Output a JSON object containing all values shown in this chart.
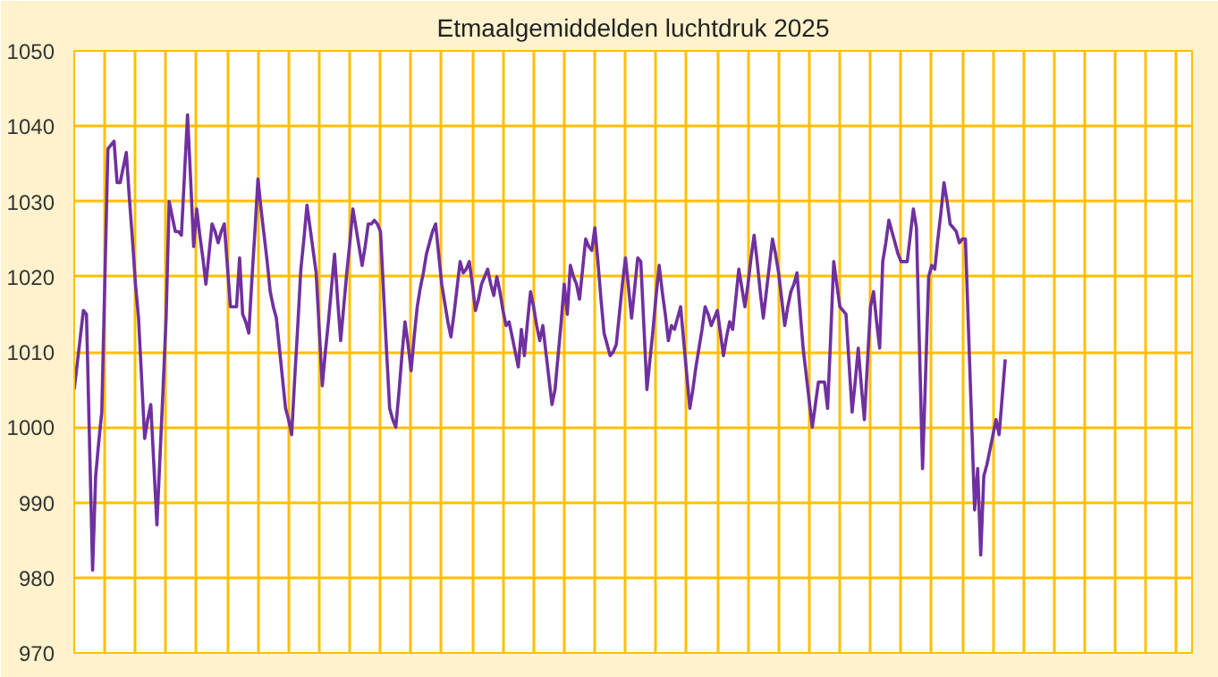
{
  "chart_data": {
    "type": "line",
    "title": "Etmaalgemiddelden luchtdruk 2025",
    "categories": [
      null,
      null,
      null,
      null,
      null,
      null,
      null,
      null,
      null,
      null,
      null,
      null,
      null,
      null,
      null,
      null,
      null,
      null,
      null,
      null,
      null,
      null,
      null,
      null,
      null,
      null,
      null,
      null,
      null,
      null,
      null,
      null,
      null,
      null,
      null,
      null,
      null,
      null,
      null,
      null,
      null,
      null,
      null,
      null,
      null,
      null,
      null,
      null,
      null,
      null,
      null,
      null,
      null,
      null,
      null,
      null,
      null,
      null,
      null,
      null,
      null,
      null,
      null,
      null,
      null,
      null,
      null,
      null,
      null,
      null,
      null,
      null,
      null,
      null,
      null,
      null,
      null,
      null,
      null,
      null,
      null,
      null,
      null,
      null,
      null,
      null,
      null,
      null,
      null,
      null,
      null,
      null,
      null,
      null,
      null,
      null,
      null,
      null,
      null,
      null,
      null,
      null,
      null,
      null,
      null,
      null,
      null,
      null,
      null,
      null,
      null,
      null,
      null,
      null,
      null,
      null,
      null,
      null,
      null,
      null,
      null,
      null,
      null,
      null,
      null,
      null,
      null,
      null,
      null,
      null,
      null,
      null,
      null,
      null,
      null,
      null,
      null,
      null,
      null,
      null,
      null,
      null,
      null,
      null,
      null,
      null,
      null,
      null,
      null,
      null,
      null,
      null,
      null,
      null,
      null,
      null,
      null,
      null,
      null,
      null,
      null,
      null,
      null,
      null,
      null,
      null,
      null,
      null,
      null,
      null,
      null,
      null,
      null,
      null,
      null,
      null,
      null,
      null,
      null,
      null,
      null,
      null,
      null,
      null,
      null,
      null,
      null,
      null,
      null,
      null,
      null,
      null,
      null,
      null,
      null,
      null,
      null,
      null,
      null,
      null,
      null,
      null,
      null,
      null,
      null,
      null,
      null,
      null,
      null,
      null,
      null,
      null,
      null,
      null,
      null,
      null,
      null,
      null,
      null,
      null,
      null,
      null,
      null,
      null,
      null,
      null,
      null,
      null,
      null,
      null,
      null,
      null,
      null,
      null,
      null,
      null,
      null,
      null,
      null,
      null,
      null,
      null,
      null,
      null,
      null,
      null,
      null,
      null,
      null,
      null,
      null,
      null,
      null,
      null,
      null,
      null,
      null,
      null,
      null,
      null,
      null,
      null,
      null,
      null,
      null,
      null,
      null,
      null,
      null,
      null,
      null,
      null,
      null,
      null,
      null,
      null,
      null,
      null,
      null,
      null,
      null,
      null,
      null,
      null,
      null,
      null,
      null,
      null,
      null,
      null,
      null,
      null,
      null,
      null,
      null,
      null,
      null,
      null,
      null,
      null,
      null,
      null,
      null,
      null,
      null,
      null,
      null,
      null,
      null,
      null,
      null,
      null,
      null,
      null,
      null,
      null,
      null,
      null,
      null,
      null,
      null,
      null,
      null,
      null,
      null,
      null,
      null,
      null,
      null,
      null,
      null,
      null,
      null,
      null,
      null,
      null,
      null,
      null,
      null,
      null,
      null,
      null,
      null,
      null,
      null,
      null,
      null,
      null,
      null,
      null,
      null,
      null,
      null,
      null,
      null,
      null,
      null,
      null,
      null,
      null,
      null,
      null,
      null,
      null,
      null
    ],
    "series": [
      {
        "color": "#7030a0",
        "values": [
          1005,
          1008.5,
          1012,
          1015.5,
          1015,
          998,
          981,
          993.5,
          998,
          1002,
          1019.5,
          1037,
          1037.5,
          1038,
          1032.5,
          1032.5,
          1034.5,
          1036.5,
          1030.5,
          1025,
          1019,
          1014.5,
          1006.5,
          998.5,
          1001,
          1003,
          995,
          987,
          996,
          1005,
          1014.5,
          1030,
          1028,
          1026,
          1026,
          1025.5,
          1033.5,
          1041.5,
          1033,
          1024,
          1029,
          1025.5,
          1022.5,
          1019,
          1023,
          1027,
          1026,
          1024.5,
          1026,
          1027,
          1021.5,
          1016,
          1016,
          1016,
          1022.5,
          1015,
          1014,
          1012.5,
          1019.5,
          1026,
          1033,
          1029,
          1025.5,
          1022,
          1018,
          1016,
          1014.5,
          1010.5,
          1006.5,
          1002.5,
          1001,
          999,
          1006.5,
          1013.5,
          1021,
          1025,
          1029.5,
          1026.5,
          1023.5,
          1020.5,
          1013,
          1005.5,
          1010,
          1014,
          1018.5,
          1023,
          1017,
          1011.5,
          1016,
          1020.5,
          1024.5,
          1029,
          1026.5,
          1024,
          1021.5,
          1024,
          1027,
          1027,
          1027.5,
          1027,
          1026,
          1018,
          1010,
          1002.5,
          1001,
          1000,
          1004.5,
          1009.5,
          1014,
          1011,
          1007.5,
          1012,
          1016,
          1018.5,
          1020.5,
          1023,
          1024.5,
          1026,
          1027,
          1023,
          1019,
          1016.5,
          1014,
          1012,
          1015,
          1018.5,
          1022,
          1020.5,
          1021,
          1022,
          1019,
          1015.5,
          1017,
          1019,
          1020,
          1021,
          1019,
          1017.5,
          1020,
          1018,
          1015.5,
          1013.5,
          1014,
          1012,
          1010,
          1008,
          1013,
          1009.5,
          1014,
          1018,
          1016,
          1013.5,
          1011.5,
          1013.5,
          1010,
          1006.5,
          1003,
          1005,
          1009.5,
          1014,
          1019,
          1015,
          1021.5,
          1020,
          1019,
          1017,
          1021,
          1025,
          1024,
          1023.5,
          1026.5,
          1022,
          1017,
          1012.5,
          1011,
          1009.5,
          1010,
          1011,
          1015,
          1019,
          1022.5,
          1018.5,
          1014.5,
          1018.5,
          1022.5,
          1022,
          1013.5,
          1005,
          1009,
          1013,
          1017.5,
          1021.5,
          1018,
          1015,
          1011.5,
          1013.5,
          1013,
          1014.5,
          1016,
          1011.5,
          1007,
          1002.5,
          1005,
          1008,
          1010.5,
          1013,
          1016,
          1015,
          1013.5,
          1014.5,
          1015.5,
          1012.5,
          1009.5,
          1012,
          1014,
          1013,
          1017,
          1021,
          1018.5,
          1016,
          1019,
          1022.5,
          1025.5,
          1022,
          1018,
          1014.5,
          1018,
          1021.5,
          1025,
          1023,
          1020.5,
          1017,
          1013.5,
          1016,
          1018,
          1019,
          1020.5,
          1015.5,
          1010.5,
          1007,
          1003.5,
          1000,
          1003,
          1006,
          1006,
          1006,
          1002.5,
          1012,
          1022,
          1019,
          1016,
          1015.5,
          1015,
          1008.5,
          1002,
          1006,
          1010.5,
          1005.5,
          1001,
          1008.5,
          1016,
          1018,
          1014,
          1010.5,
          1022,
          1024.5,
          1027.5,
          1026,
          1024.5,
          1023,
          1022,
          1022,
          1022,
          1025.5,
          1029,
          1026.5,
          1010.5,
          994.5,
          1007,
          1020,
          1021.5,
          1021,
          1025,
          1028.5,
          1032.5,
          1030,
          1027,
          1026.5,
          1026,
          1024.5,
          1025,
          1025,
          1013,
          1001,
          989,
          994.5,
          983,
          993.5,
          995,
          997,
          999,
          1001,
          999,
          1004,
          1009,
          null,
          null,
          null,
          null,
          null,
          null,
          null,
          null,
          null,
          null,
          null,
          null,
          null,
          null,
          null,
          null,
          null,
          null,
          null,
          null,
          null,
          null,
          null,
          null,
          null,
          null,
          null,
          null,
          null,
          null,
          null,
          null,
          null,
          null,
          null,
          null,
          null,
          null,
          null,
          null,
          null,
          null,
          null,
          null,
          null,
          null,
          null,
          null,
          null,
          null,
          null,
          null,
          null,
          null,
          null,
          null,
          null,
          null,
          null,
          null
        ]
      }
    ],
    "ylim": [
      970,
      1050
    ],
    "yticks": [
      970,
      980,
      990,
      1000,
      1010,
      1020,
      1030,
      1040,
      1050
    ],
    "grid": true,
    "line_style": "solid"
  }
}
